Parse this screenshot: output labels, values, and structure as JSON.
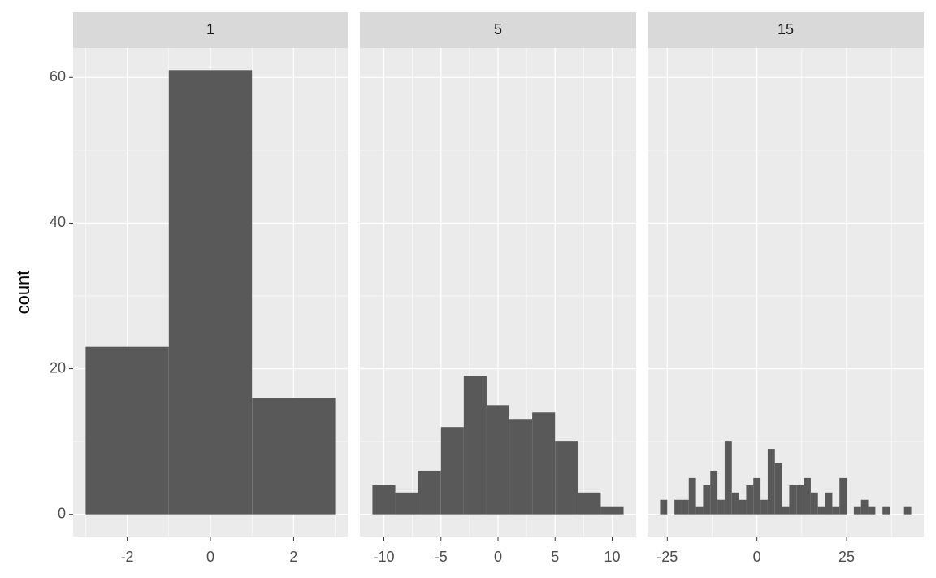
{
  "chart_data": [
    {
      "type": "histogram",
      "title": "1",
      "ylabel": "count",
      "color": "#595959",
      "bins": [
        -3,
        -1,
        1,
        3
      ],
      "values": [
        23,
        61,
        16
      ],
      "xlim": [
        -3.3,
        3.3
      ],
      "xticks": [
        -2,
        0,
        2
      ],
      "ylim": [
        -3.05,
        64.05
      ],
      "yticks": [
        0,
        20,
        40,
        60
      ]
    },
    {
      "type": "histogram",
      "title": "5",
      "color": "#595959",
      "bins": [
        -11,
        -9,
        -7,
        -5,
        -3,
        -1,
        1,
        3,
        5,
        7,
        9,
        11
      ],
      "values": [
        4,
        3,
        6,
        12,
        19,
        15,
        13,
        14,
        10,
        3,
        1
      ],
      "xlim": [
        -12.1,
        12.1
      ],
      "xticks": [
        -10,
        -5,
        0,
        5,
        10
      ],
      "ylim": [
        -3.05,
        64.05
      ],
      "yticks": [
        0,
        20,
        40,
        60
      ]
    },
    {
      "type": "histogram",
      "title": "15",
      "color": "#595959",
      "bins": [
        -27,
        -25,
        -23,
        -21,
        -19,
        -17,
        -15,
        -13,
        -11,
        -9,
        -7,
        -5,
        -3,
        -1,
        1,
        3,
        5,
        7,
        9,
        11,
        13,
        15,
        17,
        19,
        21,
        23,
        25,
        27,
        29,
        31,
        33,
        35,
        37,
        39,
        41,
        43
      ],
      "values": [
        2,
        0,
        2,
        2,
        5,
        1,
        4,
        6,
        2,
        10,
        3,
        2,
        4,
        5,
        2,
        9,
        7,
        1,
        4,
        4,
        5,
        3,
        1,
        3,
        1,
        5,
        0,
        1,
        2,
        1,
        0,
        1,
        0,
        0,
        1
      ],
      "xlim": [
        -30.5,
        46.5
      ],
      "xticks": [
        -25,
        0,
        25
      ],
      "ylim": [
        -3.05,
        64.05
      ],
      "yticks": [
        0,
        20,
        40,
        60
      ]
    }
  ]
}
